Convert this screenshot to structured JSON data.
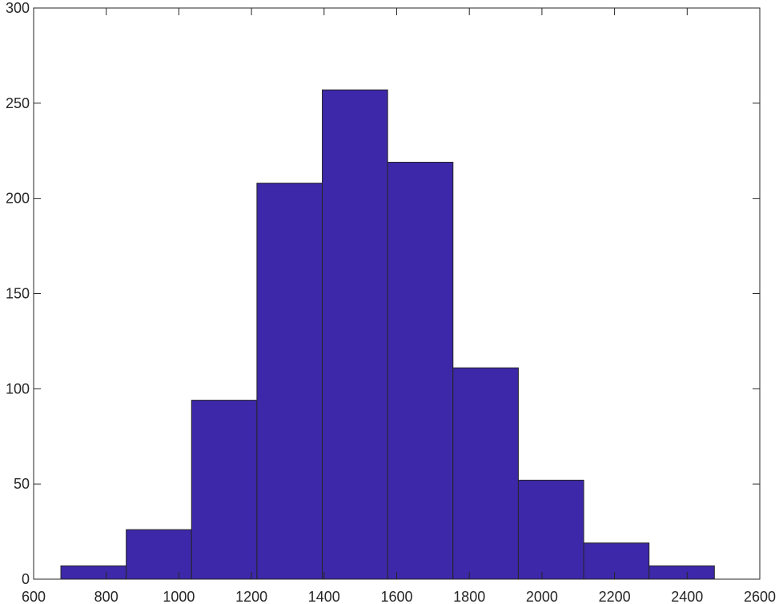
{
  "chart_data": {
    "type": "bar",
    "title": "",
    "xlabel": "",
    "ylabel": "",
    "xlim": [
      600,
      2600
    ],
    "ylim": [
      0,
      300
    ],
    "x_ticks": [
      600,
      800,
      1000,
      1200,
      1400,
      1600,
      1800,
      2000,
      2200,
      2400,
      2600
    ],
    "y_ticks": [
      0,
      50,
      100,
      150,
      200,
      250,
      300
    ],
    "bin_edges": [
      675,
      855,
      1035,
      1215,
      1395,
      1575,
      1755,
      1935,
      2115,
      2295,
      2475
    ],
    "values": [
      7,
      26,
      94,
      208,
      257,
      219,
      111,
      52,
      19,
      7
    ],
    "bar_color": "#3c28a8",
    "bar_edge_color": "#262626",
    "grid": false
  }
}
